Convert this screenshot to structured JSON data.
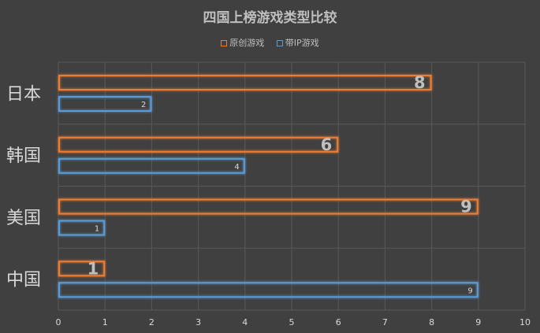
{
  "chart_data": {
    "type": "bar",
    "orientation": "horizontal",
    "title": "四国上榜游戏类型比较",
    "categories": [
      "日本",
      "韩国",
      "美国",
      "中国"
    ],
    "series": [
      {
        "name": "原创游戏",
        "values": [
          8,
          6,
          9,
          1
        ],
        "color": "#ed7d31"
      },
      {
        "name": "带IP游戏",
        "values": [
          2,
          4,
          1,
          9
        ],
        "color": "#5b9bd5"
      }
    ],
    "xlim": [
      0,
      10
    ],
    "x_ticks": [
      "0",
      "1",
      "2",
      "3",
      "4",
      "5",
      "6",
      "7",
      "8",
      "9",
      "10"
    ],
    "grid": true,
    "legend_position": "top"
  }
}
